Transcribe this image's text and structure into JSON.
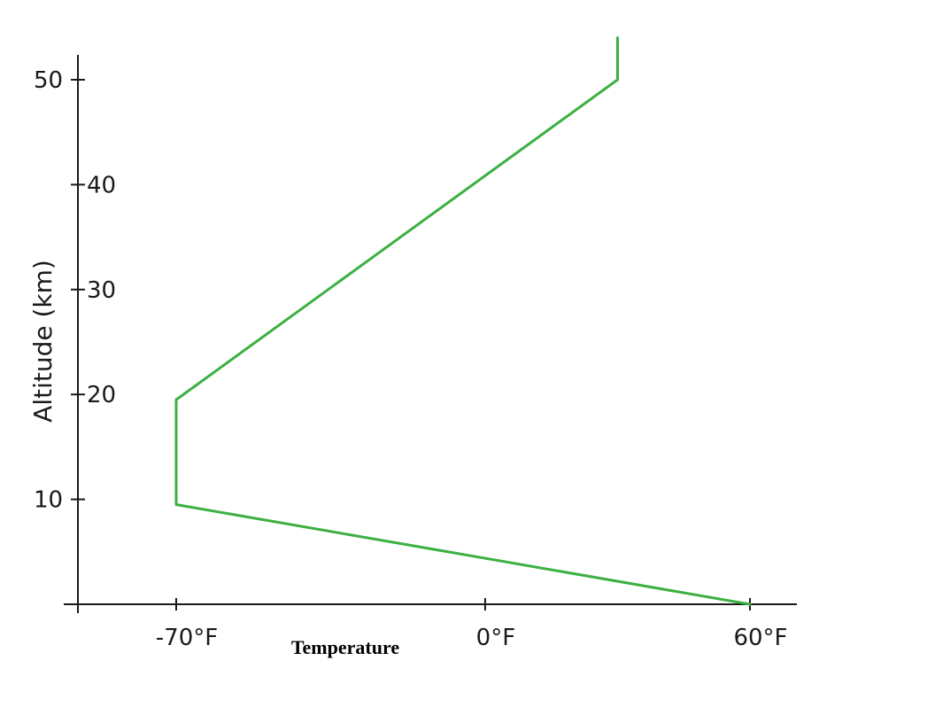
{
  "chart_data": {
    "type": "line",
    "title": "",
    "xlabel": "Temperature",
    "ylabel": "Altitude (km)",
    "x_ticks": [
      {
        "value": -70,
        "label": "-70°F"
      },
      {
        "value": 0,
        "label": "0°F"
      },
      {
        "value": 60,
        "label": "60°F"
      }
    ],
    "y_ticks": [
      {
        "value": 10,
        "label": "10"
      },
      {
        "value": 20,
        "label": "20"
      },
      {
        "value": 30,
        "label": "30"
      },
      {
        "value": 40,
        "label": "40"
      },
      {
        "value": 50,
        "label": "50"
      }
    ],
    "xlim": [
      -92,
      70
    ],
    "ylim": [
      0,
      55
    ],
    "grid": false,
    "series": [
      {
        "color": "#3cb043",
        "points": [
          {
            "x": 60,
            "y": 0
          },
          {
            "x": -70,
            "y": 9.5
          },
          {
            "x": -70,
            "y": 19.5
          },
          {
            "x": 30,
            "y": 50
          },
          {
            "x": 30,
            "y": 54
          }
        ]
      }
    ]
  }
}
